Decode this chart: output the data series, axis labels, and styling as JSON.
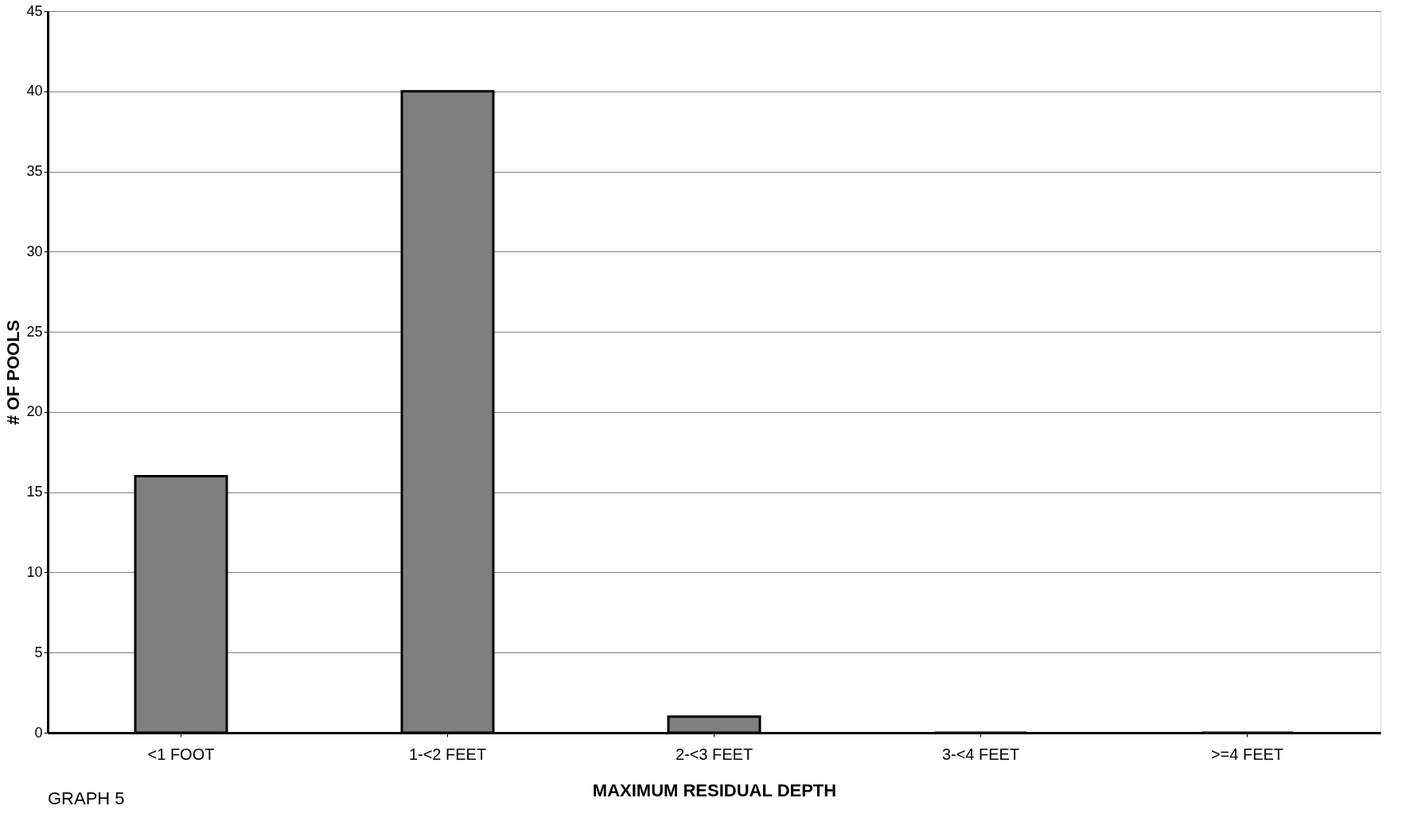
{
  "chart_data": {
    "type": "bar",
    "xlabel": "MAXIMUM RESIDUAL DEPTH",
    "ylabel": "# OF POOLS",
    "categories": [
      "<1 FOOT",
      "1-<2 FEET",
      "2-<3 FEET",
      "3-<4 FEET",
      ">=4 FEET"
    ],
    "values": [
      16,
      40,
      1,
      0,
      0
    ],
    "color": "#7f7f7f",
    "ylim": [
      0,
      45
    ],
    "yticks": [
      0,
      5,
      10,
      15,
      20,
      25,
      30,
      35,
      40,
      45
    ],
    "grid": "y",
    "annotations": [
      "GRAPH 5"
    ]
  }
}
